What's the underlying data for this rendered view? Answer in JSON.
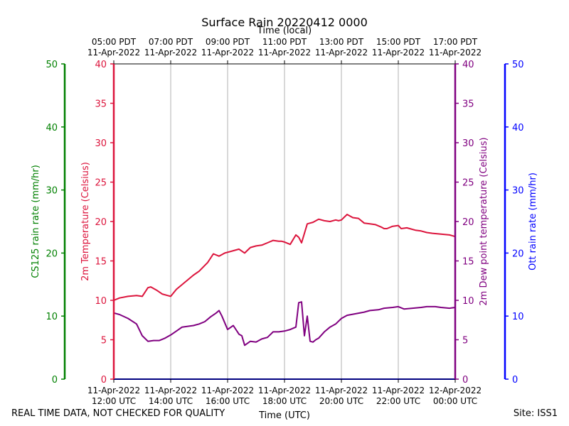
{
  "chart_data": {
    "type": "line",
    "title": "Surface Rain 20220412 0000",
    "top_axis_label": "Time (local)",
    "xlabel": "Time (UTC)",
    "footer_left": "REAL TIME DATA, NOT CHECKED FOR QUALITY",
    "footer_right": "Site: ISS1",
    "x_range_hours_utc": [
      12,
      24
    ],
    "bottom_ticks": [
      {
        "hour": 12,
        "line1": "11-Apr-2022",
        "line2": "12:00 UTC"
      },
      {
        "hour": 14,
        "line1": "11-Apr-2022",
        "line2": "14:00 UTC"
      },
      {
        "hour": 16,
        "line1": "11-Apr-2022",
        "line2": "16:00 UTC"
      },
      {
        "hour": 18,
        "line1": "11-Apr-2022",
        "line2": "18:00 UTC"
      },
      {
        "hour": 20,
        "line1": "11-Apr-2022",
        "line2": "20:00 UTC"
      },
      {
        "hour": 22,
        "line1": "11-Apr-2022",
        "line2": "22:00 UTC"
      },
      {
        "hour": 24,
        "line1": "12-Apr-2022",
        "line2": "00:00 UTC"
      }
    ],
    "top_ticks": [
      {
        "hour": 12,
        "line1": "05:00 PDT",
        "line2": "11-Apr-2022"
      },
      {
        "hour": 14,
        "line1": "07:00 PDT",
        "line2": "11-Apr-2022"
      },
      {
        "hour": 16,
        "line1": "09:00 PDT",
        "line2": "11-Apr-2022"
      },
      {
        "hour": 18,
        "line1": "11:00 PDT",
        "line2": "11-Apr-2022"
      },
      {
        "hour": 20,
        "line1": "13:00 PDT",
        "line2": "11-Apr-2022"
      },
      {
        "hour": 22,
        "line1": "15:00 PDT",
        "line2": "11-Apr-2022"
      },
      {
        "hour": 24,
        "line1": "17:00 PDT",
        "line2": "11-Apr-2022"
      }
    ],
    "axes": {
      "temp": {
        "label": "2m Temperature (Celsius)",
        "range": [
          0,
          40
        ],
        "ticks": [
          "0",
          "5",
          "10",
          "15",
          "20",
          "25",
          "30",
          "35",
          "40"
        ],
        "color": "#dc143c"
      },
      "dew": {
        "label": "2m Dew point temperature (Celsius)",
        "range": [
          0,
          40
        ],
        "ticks": [
          "0",
          "5",
          "10",
          "15",
          "20",
          "25",
          "30",
          "35",
          "40"
        ],
        "color": "#800080"
      },
      "cs125": {
        "label": "CS125 rain rate (mm/hr)",
        "range": [
          0,
          50
        ],
        "ticks": [
          "0",
          "10",
          "20",
          "30",
          "40",
          "50"
        ],
        "color": "#008000"
      },
      "ott": {
        "label": "Ott rain rate (mm/hr)",
        "range": [
          0,
          50
        ],
        "ticks": [
          "0",
          "10",
          "20",
          "30",
          "40",
          "50"
        ],
        "color": "#0000ff"
      }
    },
    "series": [
      {
        "name": "2m Temperature",
        "axis": "temp",
        "color": "#dc143c",
        "x": [
          12.0,
          12.2,
          12.5,
          12.8,
          13.0,
          13.2,
          13.3,
          13.5,
          13.7,
          13.9,
          14.0,
          14.2,
          14.5,
          14.8,
          15.0,
          15.3,
          15.5,
          15.7,
          15.8,
          15.9,
          16.0,
          16.2,
          16.4,
          16.6,
          16.8,
          17.0,
          17.2,
          17.4,
          17.6,
          17.8,
          17.9,
          18.0,
          18.2,
          18.4,
          18.5,
          18.6,
          18.8,
          18.9,
          19.0,
          19.2,
          19.4,
          19.6,
          19.8,
          19.9,
          20.0,
          20.2,
          20.4,
          20.6,
          20.8,
          21.0,
          21.2,
          21.4,
          21.5,
          21.6,
          21.8,
          22.0,
          22.1,
          22.3,
          22.4,
          22.6,
          22.8,
          23.0,
          23.2,
          23.5,
          23.8,
          24.0
        ],
        "values": [
          10.0,
          10.3,
          10.5,
          10.6,
          10.5,
          11.6,
          11.7,
          11.3,
          10.8,
          10.6,
          10.5,
          11.4,
          12.3,
          13.2,
          13.7,
          14.8,
          15.9,
          15.6,
          15.8,
          16.0,
          16.1,
          16.3,
          16.5,
          16.0,
          16.7,
          16.9,
          17.0,
          17.3,
          17.6,
          17.5,
          17.5,
          17.4,
          17.1,
          18.3,
          18.0,
          17.3,
          19.7,
          19.8,
          19.9,
          20.3,
          20.1,
          20.0,
          20.2,
          20.1,
          20.2,
          20.9,
          20.5,
          20.4,
          19.8,
          19.7,
          19.6,
          19.3,
          19.1,
          19.1,
          19.4,
          19.5,
          19.1,
          19.2,
          19.1,
          18.9,
          18.8,
          18.6,
          18.5,
          18.4,
          18.3,
          18.1
        ]
      },
      {
        "name": "2m Dew point temperature",
        "axis": "dew",
        "color": "#800080",
        "x": [
          12.0,
          12.2,
          12.5,
          12.8,
          13.0,
          13.2,
          13.4,
          13.6,
          13.8,
          14.0,
          14.2,
          14.4,
          14.6,
          14.8,
          15.0,
          15.2,
          15.4,
          15.6,
          15.7,
          15.8,
          16.0,
          16.2,
          16.4,
          16.5,
          16.6,
          16.8,
          17.0,
          17.2,
          17.4,
          17.6,
          17.8,
          18.0,
          18.2,
          18.4,
          18.5,
          18.6,
          18.7,
          18.8,
          18.9,
          19.0,
          19.1,
          19.2,
          19.4,
          19.6,
          19.8,
          20.0,
          20.2,
          20.5,
          20.8,
          21.0,
          21.3,
          21.5,
          21.8,
          22.0,
          22.2,
          22.5,
          22.8,
          23.0,
          23.3,
          23.5,
          23.8,
          24.0
        ],
        "values": [
          8.4,
          8.2,
          7.7,
          7.0,
          5.5,
          4.8,
          4.9,
          4.9,
          5.2,
          5.6,
          6.1,
          6.6,
          6.7,
          6.8,
          7.0,
          7.3,
          7.9,
          8.4,
          8.7,
          8.0,
          6.3,
          6.8,
          5.7,
          5.5,
          4.3,
          4.8,
          4.7,
          5.1,
          5.3,
          6.0,
          6.0,
          6.1,
          6.3,
          6.6,
          9.7,
          9.8,
          5.5,
          8.0,
          4.8,
          4.7,
          5.0,
          5.2,
          6.0,
          6.6,
          7.0,
          7.7,
          8.1,
          8.3,
          8.5,
          8.7,
          8.8,
          9.0,
          9.1,
          9.2,
          8.9,
          9.0,
          9.1,
          9.2,
          9.2,
          9.1,
          9.0,
          9.1
        ]
      },
      {
        "name": "CS125 rain rate",
        "axis": "cs125",
        "color": "#008000",
        "x": [
          12,
          24
        ],
        "values": [
          0,
          0
        ]
      },
      {
        "name": "Ott rain rate",
        "axis": "ott",
        "color": "#0000ff",
        "x": [
          12,
          24
        ],
        "values": [
          0,
          0
        ]
      }
    ]
  }
}
